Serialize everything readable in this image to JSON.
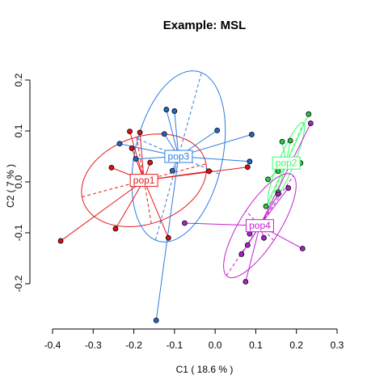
{
  "chart_data": {
    "type": "scatter",
    "title": "Example: MSL",
    "xlabel": "C1 ( 18.6 % )",
    "ylabel": "C2 ( 7 % )",
    "xlim": [
      -0.4,
      0.3
    ],
    "ylim": [
      -0.25,
      0.2
    ],
    "x_ticks": [
      "-0.4",
      "-0.3",
      "-0.2",
      "-0.1",
      "0.0",
      "0.1",
      "0.2",
      "0.3"
    ],
    "y_ticks": [
      "-0.2",
      "-0.1",
      "0.0",
      "0.1",
      "0.2"
    ],
    "grid": false,
    "legend": "none",
    "groups": [
      {
        "name": "pop1",
        "color": "#e41a1c",
        "fill": "#dd1111",
        "centroid": [
          -0.175,
          0.003
        ],
        "ellipse": {
          "center": [
            -0.175,
            0.003
          ],
          "a": 0.156,
          "b": 0.087,
          "angle_deg": 12
        },
        "points": [
          [
            -0.38,
            -0.116
          ],
          [
            -0.245,
            -0.092
          ],
          [
            -0.255,
            0.028
          ],
          [
            -0.21,
            0.099
          ],
          [
            -0.185,
            0.097
          ],
          [
            -0.205,
            0.066
          ],
          [
            -0.16,
            0.038
          ],
          [
            -0.115,
            -0.11
          ],
          [
            -0.015,
            0.021
          ],
          [
            0.08,
            0.029
          ]
        ]
      },
      {
        "name": "pop2",
        "color": "#33ff66",
        "fill": "#22cc44",
        "centroid": [
          0.175,
          0.037
        ],
        "ellipse": {
          "center": [
            0.175,
            0.037
          ],
          "a": 0.09,
          "b": 0.018,
          "angle_deg": 62
        },
        "points": [
          [
            0.23,
            0.133
          ],
          [
            0.165,
            0.079
          ],
          [
            0.185,
            0.081
          ],
          [
            0.17,
            0.04
          ],
          [
            0.21,
            0.037
          ],
          [
            0.155,
            0.021
          ],
          [
            0.13,
            0.005
          ],
          [
            0.155,
            -0.02
          ],
          [
            0.125,
            -0.048
          ]
        ]
      },
      {
        "name": "pop3",
        "color": "#2d7ce0",
        "fill": "#2266cc",
        "centroid": [
          -0.09,
          0.05
        ],
        "ellipse": {
          "center": [
            -0.09,
            0.05
          ],
          "a": 0.174,
          "b": 0.106,
          "angle_deg": 71
        },
        "points": [
          [
            -0.145,
            -0.272
          ],
          [
            -0.235,
            0.075
          ],
          [
            -0.195,
            0.045
          ],
          [
            -0.12,
            0.142
          ],
          [
            -0.1,
            0.139
          ],
          [
            -0.125,
            0.094
          ],
          [
            -0.105,
            0.022
          ],
          [
            0.005,
            0.101
          ],
          [
            0.09,
            0.093
          ],
          [
            0.085,
            0.04
          ]
        ]
      },
      {
        "name": "pop4",
        "color": "#c61fd1",
        "fill": "#aa22cc",
        "centroid": [
          0.11,
          -0.086
        ],
        "ellipse": {
          "center": [
            0.11,
            -0.086
          ],
          "a": 0.128,
          "b": 0.045,
          "angle_deg": 50
        },
        "points": [
          [
            0.235,
            0.115
          ],
          [
            0.18,
            -0.012
          ],
          [
            0.155,
            -0.024
          ],
          [
            0.215,
            -0.131
          ],
          [
            0.12,
            -0.11
          ],
          [
            0.085,
            -0.102
          ],
          [
            0.08,
            -0.124
          ],
          [
            0.065,
            -0.142
          ],
          [
            0.075,
            -0.196
          ],
          [
            -0.075,
            -0.081
          ]
        ]
      }
    ]
  }
}
